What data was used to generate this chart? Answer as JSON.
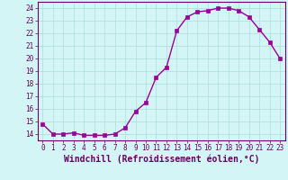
{
  "x": [
    0,
    1,
    2,
    3,
    4,
    5,
    6,
    7,
    8,
    9,
    10,
    11,
    12,
    13,
    14,
    15,
    16,
    17,
    18,
    19,
    20,
    21,
    22,
    23
  ],
  "y": [
    14.8,
    14.0,
    14.0,
    14.1,
    13.9,
    13.9,
    13.9,
    14.0,
    14.5,
    15.8,
    16.5,
    18.5,
    19.3,
    22.2,
    23.3,
    23.7,
    23.8,
    24.0,
    24.0,
    23.8,
    23.3,
    22.3,
    21.3,
    20.0
  ],
  "line_color": "#990099",
  "marker": "s",
  "markersize": 2.5,
  "linewidth": 1.0,
  "background_color": "#d4f5f5",
  "grid_color": "#aadddd",
  "xlabel": "Windchill (Refroidissement éolien,°C)",
  "xlabel_fontsize": 7,
  "xlim": [
    -0.5,
    23.5
  ],
  "ylim": [
    13.5,
    24.5
  ],
  "yticks": [
    14,
    15,
    16,
    17,
    18,
    19,
    20,
    21,
    22,
    23,
    24
  ],
  "xticks": [
    0,
    1,
    2,
    3,
    4,
    5,
    6,
    7,
    8,
    9,
    10,
    11,
    12,
    13,
    14,
    15,
    16,
    17,
    18,
    19,
    20,
    21,
    22,
    23
  ],
  "tick_color": "#660066",
  "tick_fontsize": 5.5,
  "spine_color": "#660066",
  "label_color": "#660066"
}
